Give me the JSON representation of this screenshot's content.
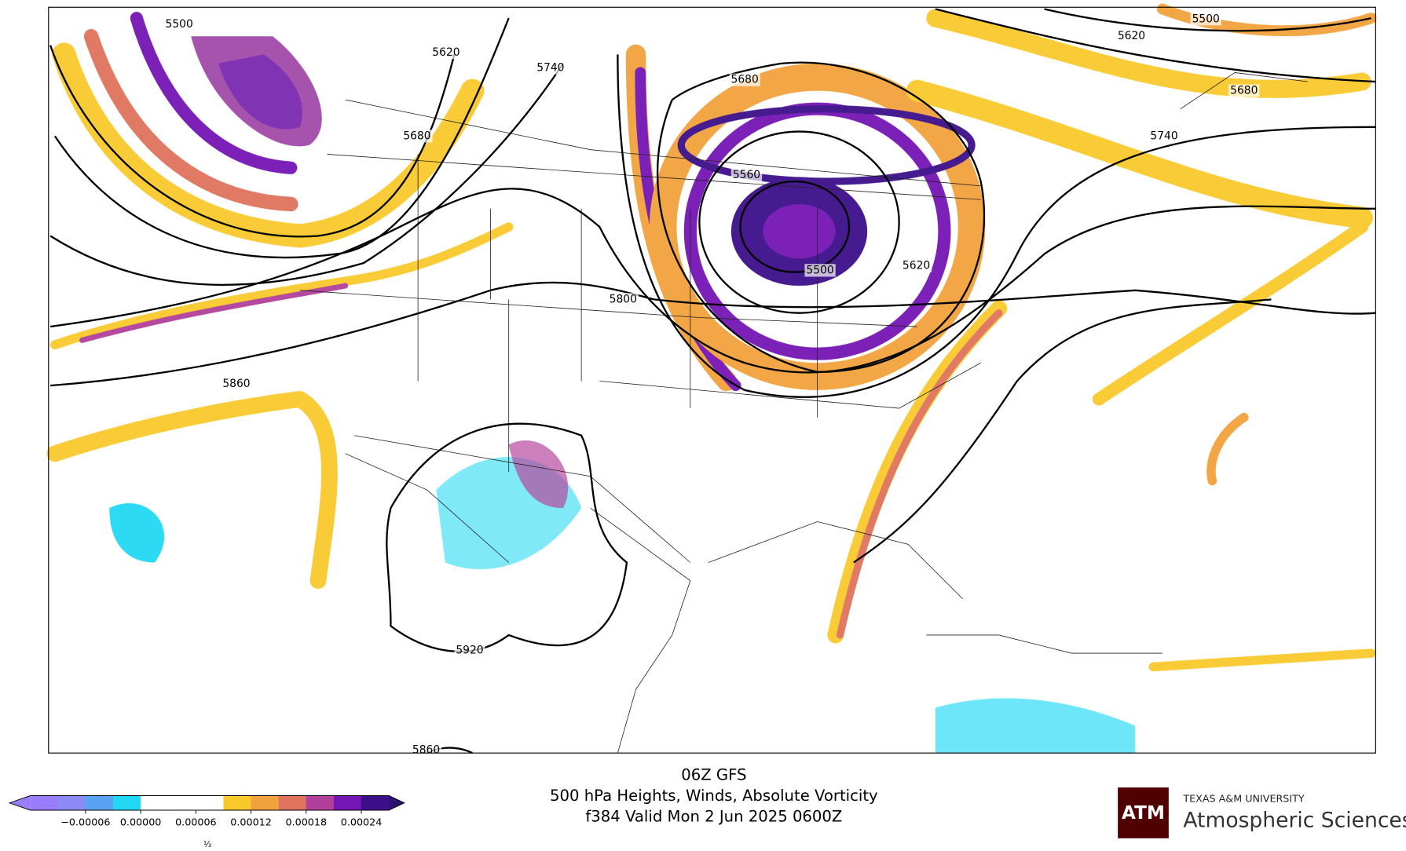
{
  "map": {
    "contour_labels": [
      5500,
      5620,
      5740,
      5680,
      5680,
      5560,
      5500,
      5620,
      5800,
      5860,
      5920,
      5860,
      5500,
      5620,
      5680,
      5740
    ]
  },
  "title": {
    "line1": "06Z GFS",
    "line2": "500 hPa Heights, Winds, Absolute Vorticity",
    "line3": "f384 Valid Mon 2 Jun 2025 0600Z"
  },
  "colorbar": {
    "lim": [
      -0.00012,
      0.00027
    ],
    "ticks": [
      {
        "value": -6e-05,
        "label": "−0.00006"
      },
      {
        "value": 0,
        "label": "0.00000"
      },
      6e-05,
      0.00012,
      0.00018,
      0.00024
    ],
    "colors": [
      "#9a7dfb",
      "#8b8af7",
      "#5aa2f2",
      "#22d8f4",
      "#ffffff",
      "#ffffff",
      "#ffffff",
      "#f9c92c",
      "#f2a23c",
      "#e0735d",
      "#b1409a",
      "#7416b4",
      "#3d0f8a"
    ],
    "extend_colors": [
      "#9a7dfb",
      "#2b1070"
    ],
    "scale_note": "⅓"
  },
  "logo": {
    "mark": "ATM",
    "university": "TEXAS A&M UNIVERSITY",
    "department": "Atmospheric Sciences"
  }
}
